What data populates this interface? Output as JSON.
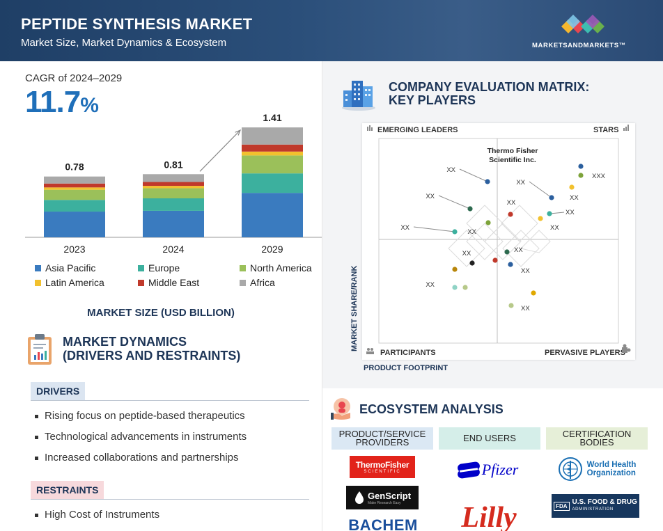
{
  "header": {
    "title": "PEPTIDE SYNTHESIS MARKET",
    "subtitle": "Market Size, Market Dynamics & Ecosystem",
    "brand": "MARKETSANDMARKETS™"
  },
  "cagr": {
    "label": "CAGR of 2024–2029",
    "value": "11.7",
    "unit": "%"
  },
  "chart_data": {
    "type": "bar",
    "stacked": true,
    "categories": [
      "2023",
      "2024",
      "2029"
    ],
    "totals": [
      "0.78",
      "0.81",
      "1.41"
    ],
    "series": [
      {
        "name": "Asia Pacific",
        "color": "#3a7bbf",
        "values": [
          0.33,
          0.34,
          0.57
        ]
      },
      {
        "name": "Europe",
        "color": "#3cb09e",
        "values": [
          0.15,
          0.16,
          0.25
        ]
      },
      {
        "name": "North America",
        "color": "#9bc05a",
        "values": [
          0.13,
          0.13,
          0.23
        ]
      },
      {
        "name": "Latin America",
        "color": "#f2c12e",
        "values": [
          0.03,
          0.03,
          0.05
        ]
      },
      {
        "name": "Middle East",
        "color": "#c0392b",
        "values": [
          0.05,
          0.05,
          0.09
        ]
      },
      {
        "name": "Africa",
        "color": "#a9a9a9",
        "values": [
          0.09,
          0.1,
          0.22
        ]
      }
    ],
    "xlabel": "MARKET SIZE (USD BILLION)"
  },
  "market_dynamics": {
    "title_line1": "MARKET DYNAMICS",
    "title_line2": "(DRIVERS AND RESTRAINTS)",
    "drivers_label": "DRIVERS",
    "drivers": [
      "Rising focus on peptide-based therapeutics",
      "Technological advancements in instruments",
      "Increased collaborations and partnerships"
    ],
    "restraints_label": "RESTRAINTS",
    "restraints": [
      "High Cost of Instruments"
    ]
  },
  "matrix": {
    "title_line1": "COMPANY EVALUATION MATRIX:",
    "title_line2": "KEY PLAYERS",
    "quadrants": {
      "top_left": "EMERGING LEADERS",
      "top_right": "STARS",
      "bottom_left": "PARTICIPANTS",
      "bottom_right": "PERVASIVE PLAYERS"
    },
    "y_axis": "MARKET SHARE/RANK",
    "x_axis": "PRODUCT FOOTPRINT",
    "highlight_line1": "Thermo Fisher",
    "highlight_line2": "Scientific Inc.",
    "placeholder_label": "XX",
    "highlight_label": "XXX"
  },
  "ecosystem": {
    "title": "ECOSYSTEM ANALYSIS",
    "headers": [
      {
        "line1": "PRODUCT/SERVICE",
        "line2": "PROVIDERS",
        "color": "#dbe8f4"
      },
      {
        "line1": "END USERS",
        "line2": "",
        "color": "#d5eee9"
      },
      {
        "line1": "CERTIFICATION",
        "line2": "BODIES",
        "color": "#e6efd8"
      }
    ],
    "logos": {
      "thermo_line1": "ThermoFisher",
      "thermo_line2": "SCIENTIFIC",
      "genscript": "GenScript",
      "genscript_sub": "Make Research Easy",
      "bachem": "BACHEM",
      "pfizer": "Pfizer",
      "lilly": "Lilly",
      "who_line1": "World Health",
      "who_line2": "Organization",
      "fda_mark": "FDA",
      "fda_line1": "U.S. FOOD & DRUG",
      "fda_line2": "ADMINISTRATION"
    }
  }
}
